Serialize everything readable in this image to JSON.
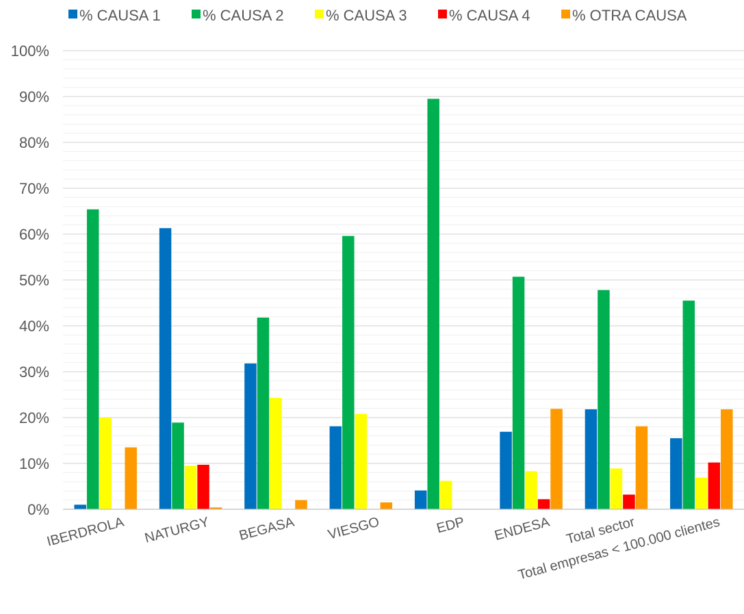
{
  "chart_data": {
    "type": "bar",
    "categories": [
      "IBERDROLA",
      "NATURGY",
      "BEGASA",
      "VIESGO",
      "EDP",
      "ENDESA",
      "Total sector",
      "Total empresas < 100.000 clientes"
    ],
    "series": [
      {
        "name": "% CAUSA 1",
        "color": "#0070C0",
        "values": [
          1.0,
          61.3,
          31.8,
          18.1,
          4.1,
          16.9,
          21.8,
          15.5
        ]
      },
      {
        "name": "% CAUSA 2",
        "color": "#00B050",
        "values": [
          65.4,
          18.9,
          41.8,
          59.6,
          89.5,
          50.7,
          47.8,
          45.5
        ]
      },
      {
        "name": "% CAUSA 3",
        "color": "#FFFF00",
        "values": [
          20.0,
          9.5,
          24.3,
          20.8,
          6.2,
          8.3,
          8.9,
          6.9
        ]
      },
      {
        "name": "% CAUSA 4",
        "color": "#FF0000",
        "values": [
          0,
          9.7,
          0,
          0,
          0,
          2.2,
          3.2,
          10.2
        ]
      },
      {
        "name": "% OTRA CAUSA",
        "color": "#FF9900",
        "values": [
          13.5,
          0.4,
          2.0,
          1.5,
          0,
          21.9,
          18.1,
          21.8
        ]
      }
    ],
    "ylim": [
      0,
      100
    ],
    "yticks": [
      "0%",
      "10%",
      "20%",
      "30%",
      "40%",
      "50%",
      "60%",
      "70%",
      "80%",
      "90%",
      "100%"
    ],
    "grid": true,
    "legend": "top"
  }
}
